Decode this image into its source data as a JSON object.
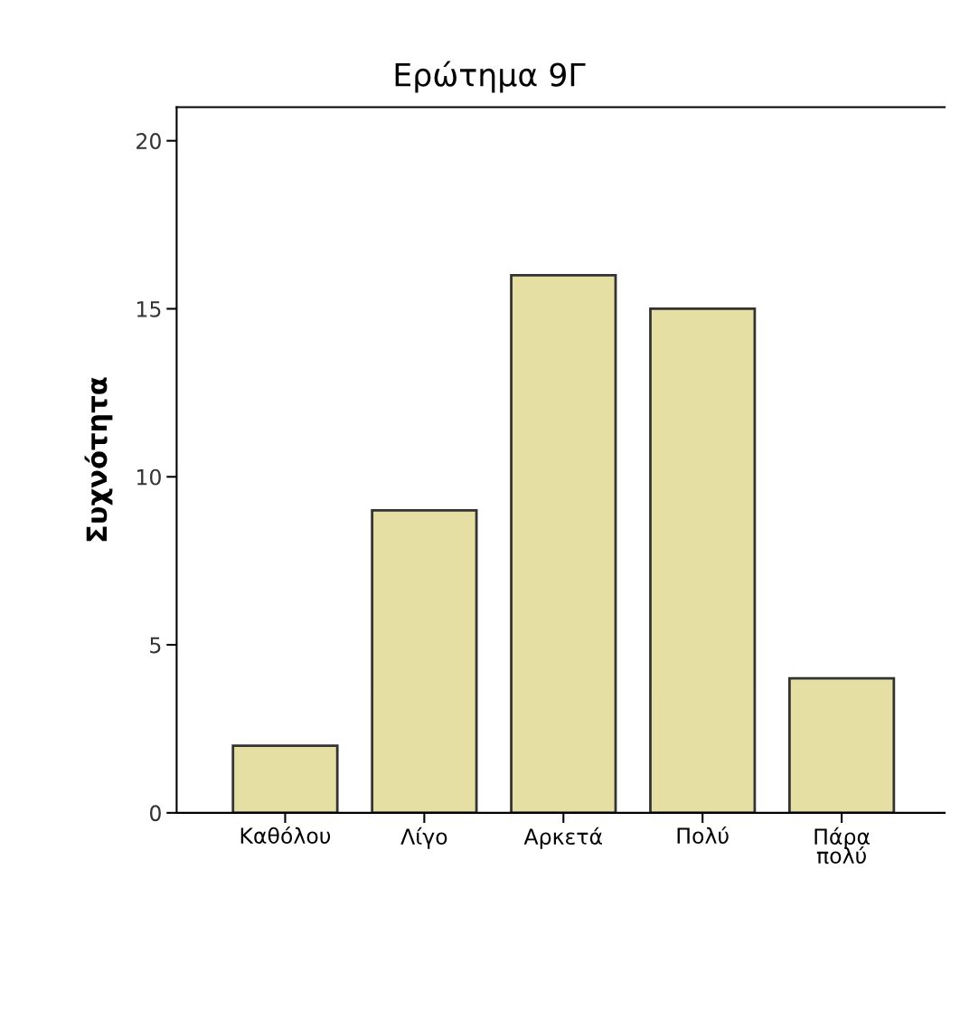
{
  "chart_data": {
    "type": "bar",
    "title": "Ερώτημα 9Γ",
    "ylabel": "Συχνότητα",
    "categories": [
      "Καθόλου",
      "Λίγο",
      "Αρκετά",
      "Πολύ",
      "Πάρα\nπολύ"
    ],
    "values": [
      2,
      9,
      16,
      15,
      4
    ],
    "color": "#e6dfa3",
    "ylim": [
      0,
      21
    ],
    "yticks": [
      0,
      5,
      10,
      15,
      20
    ],
    "grid": false
  }
}
